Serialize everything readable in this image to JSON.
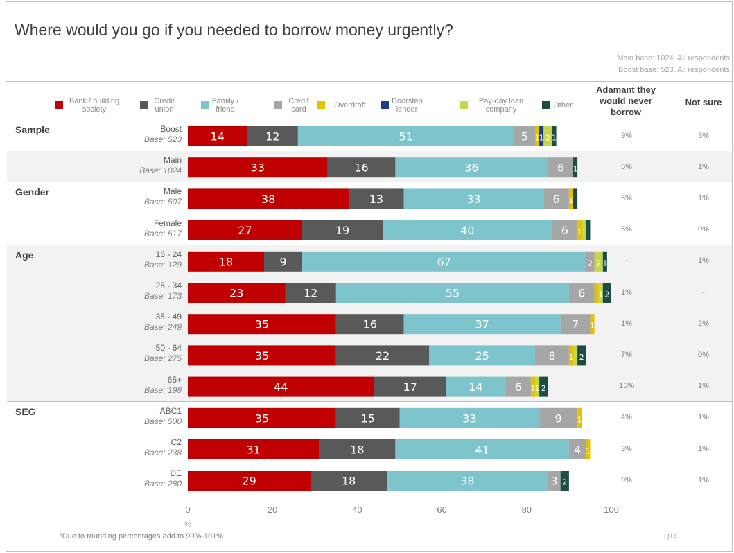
{
  "title": "Where would you go if you needed to borrow money urgently?",
  "base_notes": [
    "Main base: 1024. All respondents",
    "Boost base: 523. All respondents"
  ],
  "legend": [
    {
      "label": "Bank / building society",
      "color": "#c00000"
    },
    {
      "label": "Credit union",
      "color": "#595959"
    },
    {
      "label": "Family / friend",
      "color": "#7ec4cc"
    },
    {
      "label": "Credit card",
      "color": "#a6a6a6"
    },
    {
      "label": "Overdraft",
      "color": "#e6c100"
    },
    {
      "label": "Doorstep lender",
      "color": "#1f3c88"
    },
    {
      "label": "Pay-day loan company",
      "color": "#c5d64a"
    },
    {
      "label": "Other",
      "color": "#1e4d45"
    }
  ],
  "columns": {
    "adamant": "Adamant they would never borrow",
    "not_sure": "Not sure"
  },
  "groups": [
    "Sample",
    "Gender",
    "Age",
    "SEG"
  ],
  "rows": [
    {
      "group": "Sample",
      "label": "Boost",
      "base": "Base: 523",
      "adamant": "9%",
      "not_sure": "3%"
    },
    {
      "group": "Sample",
      "label": "Main",
      "base": "Base: 1024",
      "adamant": "5%",
      "not_sure": "1%"
    },
    {
      "group": "Gender",
      "label": "Male",
      "base": "Base: 507",
      "adamant": "6%",
      "not_sure": "1%"
    },
    {
      "group": "Gender",
      "label": "Female",
      "base": "Base: 517",
      "adamant": "5%",
      "not_sure": "0%"
    },
    {
      "group": "Age",
      "label": "16 - 24",
      "base": "Base: 129",
      "adamant": "-",
      "not_sure": "1%"
    },
    {
      "group": "Age",
      "label": "25 - 34",
      "base": "Base: 173",
      "adamant": "1%",
      "not_sure": "-"
    },
    {
      "group": "Age",
      "label": "35 - 49",
      "base": "Base: 249",
      "adamant": "1%",
      "not_sure": "2%"
    },
    {
      "group": "Age",
      "label": "50 - 64",
      "base": "Base: 275",
      "adamant": "7%",
      "not_sure": "0%"
    },
    {
      "group": "Age",
      "label": "65+",
      "base": "Base: 198",
      "adamant": "15%",
      "not_sure": "1%"
    },
    {
      "group": "SEG",
      "label": "ABC1",
      "base": "Base: 500",
      "adamant": "4%",
      "not_sure": "1%"
    },
    {
      "group": "SEG",
      "label": "C2",
      "base": "Base: 238",
      "adamant": "3%",
      "not_sure": "1%"
    },
    {
      "group": "SEG",
      "label": "DE",
      "base": "Base: 280",
      "adamant": "9%",
      "not_sure": "1%"
    }
  ],
  "chart_data": {
    "type": "bar",
    "orientation": "horizontal",
    "stacked": true,
    "title": "Where would you go if you needed to borrow money urgently?",
    "categories": [
      "Boost",
      "Main",
      "Male",
      "Female",
      "16 - 24",
      "25 - 34",
      "35 - 49",
      "50 - 64",
      "65+",
      "ABC1",
      "C2",
      "DE"
    ],
    "series": [
      {
        "name": "Bank / building society",
        "values": [
          14,
          33,
          38,
          27,
          18,
          23,
          35,
          35,
          44,
          35,
          31,
          29
        ],
        "labels": [
          "14",
          "33",
          "38",
          "27",
          "18",
          "23",
          "35",
          "35",
          "44",
          "35",
          "31",
          "29"
        ]
      },
      {
        "name": "Credit union",
        "values": [
          12,
          16,
          13,
          19,
          9,
          12,
          16,
          22,
          17,
          15,
          18,
          18
        ],
        "labels": [
          "12",
          "16",
          "13",
          "19",
          "9",
          "12",
          "16",
          "22",
          "17",
          "15",
          "18",
          "18"
        ]
      },
      {
        "name": "Family / friend",
        "values": [
          51,
          36,
          33,
          40,
          67,
          55,
          37,
          25,
          14,
          33,
          41,
          38
        ],
        "labels": [
          "51",
          "36",
          "33",
          "40",
          "67",
          "55",
          "37",
          "25",
          "14",
          "33",
          "41",
          "38"
        ]
      },
      {
        "name": "Credit card",
        "values": [
          5,
          6,
          6,
          6,
          2,
          6,
          7,
          8,
          6,
          9,
          4,
          3
        ],
        "labels": [
          "5",
          "6",
          "6",
          "6",
          "2",
          "6",
          "7",
          "8",
          "6",
          "9",
          "4",
          "3"
        ]
      },
      {
        "name": "Overdraft",
        "values": [
          1,
          0,
          1,
          1,
          0,
          1,
          1,
          1,
          1,
          1,
          1,
          0
        ],
        "labels": [
          "1",
          "",
          "1",
          "1",
          "",
          "",
          "1",
          "1",
          "1",
          "1",
          "1",
          ""
        ]
      },
      {
        "name": "Doorstep lender",
        "values": [
          1,
          0,
          0,
          0,
          0,
          0,
          0,
          0,
          0,
          0,
          0,
          0
        ],
        "labels": [
          "1",
          "",
          "",
          "",
          "",
          "",
          "",
          "",
          "",
          "",
          "",
          ""
        ]
      },
      {
        "name": "Pay-day loan company",
        "values": [
          2,
          0,
          0,
          1,
          2,
          1,
          0,
          1,
          1,
          0,
          0,
          0
        ],
        "labels": [
          "2",
          "",
          "",
          "1",
          "2",
          "1",
          "",
          "",
          "1",
          "",
          "",
          ""
        ]
      },
      {
        "name": "Other",
        "values": [
          1,
          1,
          1,
          1,
          1,
          2,
          0,
          2,
          2,
          0,
          0,
          2
        ],
        "labels": [
          "1",
          "1",
          "",
          "",
          "1",
          "2",
          "",
          "2",
          "2",
          "",
          "",
          "2"
        ]
      }
    ],
    "xlim": [
      0,
      100
    ],
    "xticks": [
      "0",
      "20",
      "40",
      "60",
      "80",
      "100"
    ],
    "xlabel": "%",
    "legend": "top",
    "grid": false
  },
  "footnote": "¹Due to rounding percentages add to 99%-101%",
  "qref": "Q14"
}
